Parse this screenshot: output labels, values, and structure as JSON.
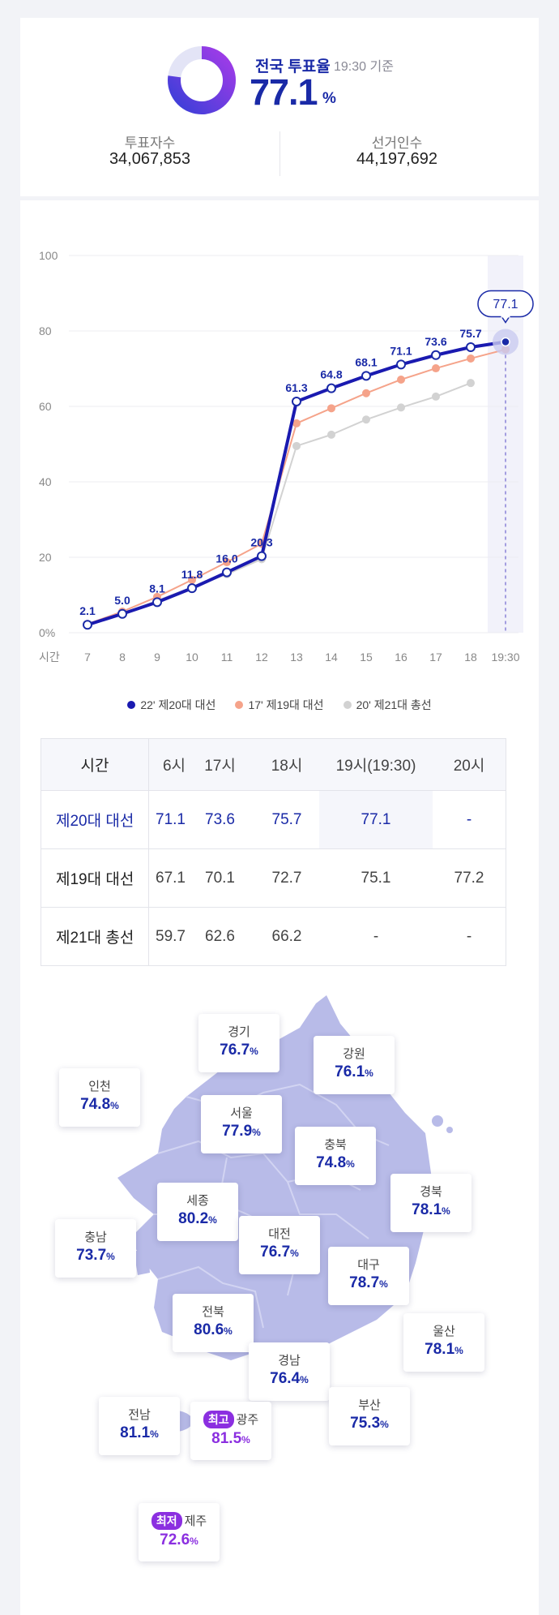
{
  "summary": {
    "title": "전국 투표율",
    "time": "19:30 기준",
    "rate": "77.1",
    "unit": "%",
    "rate_fraction": 0.771,
    "voters_label": "투표자수",
    "voters_value": "34,067,853",
    "electors_label": "선거인수",
    "electors_value": "44,197,692"
  },
  "chart_data": {
    "type": "line",
    "x": [
      "7",
      "8",
      "9",
      "10",
      "11",
      "12",
      "13",
      "14",
      "15",
      "16",
      "17",
      "18",
      "19:30"
    ],
    "xlabel": "시간",
    "ylim": [
      0,
      100
    ],
    "yticks": [
      "0%",
      "20",
      "40",
      "60",
      "80",
      "100"
    ],
    "grid": true,
    "highlight_x": "19:30",
    "current_label": "77.1",
    "series": [
      {
        "name": "22' 제20대 대선",
        "color": "#1a1ab0",
        "values": [
          2.1,
          5.0,
          8.1,
          11.8,
          16.0,
          20.3,
          61.3,
          64.8,
          68.1,
          71.1,
          73.6,
          75.7,
          77.1
        ],
        "labels": [
          "2.1",
          "5.0",
          "8.1",
          "11.8",
          "16.0",
          "20.3",
          "61.3",
          "64.8",
          "68.1",
          "71.1",
          "73.6",
          "75.7",
          ""
        ]
      },
      {
        "name": "17' 제19대 대선",
        "color": "#f5a38a",
        "values": [
          2.3,
          5.6,
          9.5,
          14.0,
          18.7,
          23.6,
          55.5,
          59.5,
          63.5,
          67.1,
          70.1,
          72.7,
          75.1
        ]
      },
      {
        "name": "20' 제21대 총선",
        "color": "#d2d2d2",
        "values": [
          2.0,
          5.0,
          8.5,
          12.0,
          15.5,
          19.5,
          49.5,
          52.5,
          56.5,
          59.7,
          62.6,
          66.2,
          null
        ]
      }
    ]
  },
  "table": {
    "header": [
      "시간",
      "6시",
      "17시",
      "18시",
      "19시(19:30)",
      "20시"
    ],
    "rows": [
      {
        "label": "제20대 대선",
        "values": [
          "71.1",
          "73.6",
          "75.7",
          "77.1",
          "-"
        ]
      },
      {
        "label": "제19대 대선",
        "values": [
          "67.1",
          "70.1",
          "72.7",
          "75.1",
          "77.2"
        ]
      },
      {
        "label": "제21대 총선",
        "values": [
          "59.7",
          "62.6",
          "66.2",
          "-",
          "-"
        ]
      }
    ]
  },
  "regions": [
    {
      "name": "경기",
      "value": "76.7",
      "unit": "%"
    },
    {
      "name": "강원",
      "value": "76.1",
      "unit": "%"
    },
    {
      "name": "인천",
      "value": "74.8",
      "unit": "%"
    },
    {
      "name": "서울",
      "value": "77.9",
      "unit": "%"
    },
    {
      "name": "충북",
      "value": "74.8",
      "unit": "%"
    },
    {
      "name": "경북",
      "value": "78.1",
      "unit": "%"
    },
    {
      "name": "세종",
      "value": "80.2",
      "unit": "%"
    },
    {
      "name": "충남",
      "value": "73.7",
      "unit": "%"
    },
    {
      "name": "대전",
      "value": "76.7",
      "unit": "%"
    },
    {
      "name": "대구",
      "value": "78.7",
      "unit": "%"
    },
    {
      "name": "전북",
      "value": "80.6",
      "unit": "%"
    },
    {
      "name": "울산",
      "value": "78.1",
      "unit": "%"
    },
    {
      "name": "경남",
      "value": "76.4",
      "unit": "%"
    },
    {
      "name": "전남",
      "value": "81.1",
      "unit": "%"
    },
    {
      "name": "광주",
      "value": "81.5",
      "unit": "%",
      "tag": "최고"
    },
    {
      "name": "부산",
      "value": "75.3",
      "unit": "%"
    },
    {
      "name": "제주",
      "value": "72.6",
      "unit": "%",
      "tag": "최저"
    }
  ]
}
